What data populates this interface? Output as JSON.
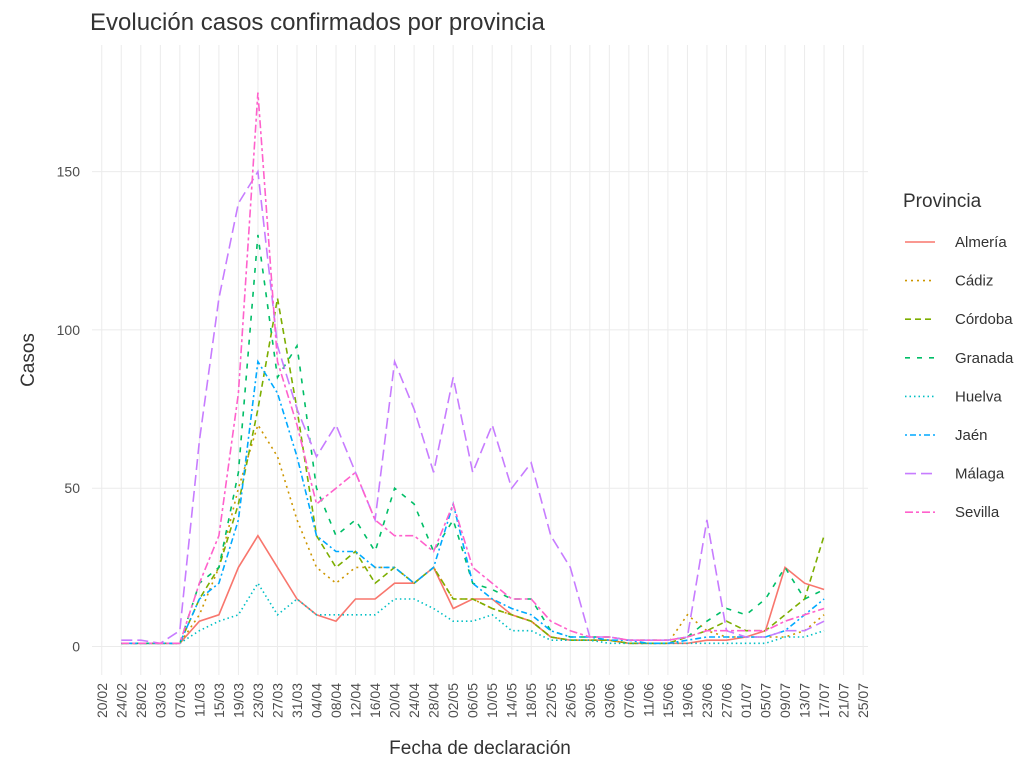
{
  "chart_data": {
    "type": "line",
    "title": "Evolución casos confirmados por provincia",
    "x_label": "Fecha de declaración",
    "y_label": "Casos",
    "legend_title": "Provincia",
    "x": [
      "24/02",
      "28/02",
      "03/03",
      "07/03",
      "11/03",
      "15/03",
      "19/03",
      "23/03",
      "27/03",
      "31/03",
      "04/04",
      "08/04",
      "12/04",
      "16/04",
      "20/04",
      "24/04",
      "28/04",
      "02/05",
      "06/05",
      "10/05",
      "14/05",
      "18/05",
      "22/05",
      "26/05",
      "30/05",
      "03/06",
      "07/06",
      "11/06",
      "15/06",
      "19/06",
      "23/06",
      "27/06",
      "01/07",
      "05/07",
      "09/07",
      "13/07",
      "17/07"
    ],
    "xlim": [
      "18/02",
      "26/07"
    ],
    "xticks": [
      "20/02",
      "24/02",
      "28/02",
      "03/03",
      "07/03",
      "11/03",
      "15/03",
      "19/03",
      "23/03",
      "27/03",
      "31/03",
      "04/04",
      "08/04",
      "12/04",
      "16/04",
      "20/04",
      "24/04",
      "28/04",
      "02/05",
      "06/05",
      "10/05",
      "14/05",
      "18/05",
      "22/05",
      "26/05",
      "30/05",
      "03/06",
      "07/06",
      "11/06",
      "15/06",
      "19/06",
      "23/06",
      "27/06",
      "01/07",
      "05/07",
      "09/07",
      "13/07",
      "17/07",
      "21/07",
      "25/07"
    ],
    "ylim": [
      -9,
      190
    ],
    "yticks": [
      0,
      50,
      100,
      150
    ],
    "grid": true,
    "series": [
      {
        "name": "Almería",
        "color": "#F8766D",
        "dash": "solid",
        "values": [
          1,
          1,
          1,
          1,
          8,
          10,
          25,
          35,
          25,
          15,
          10,
          8,
          15,
          15,
          20,
          20,
          25,
          12,
          15,
          15,
          10,
          8,
          3,
          2,
          2,
          2,
          1,
          1,
          1,
          1,
          2,
          2,
          3,
          5,
          25,
          20,
          18
        ]
      },
      {
        "name": "Cádiz",
        "color": "#CD9600",
        "dash": "dotted",
        "values": [
          1,
          1,
          1,
          1,
          10,
          25,
          50,
          70,
          60,
          40,
          25,
          20,
          25,
          25,
          25,
          20,
          25,
          15,
          15,
          12,
          10,
          8,
          3,
          2,
          2,
          2,
          1,
          1,
          1,
          10,
          5,
          3,
          3,
          3,
          3,
          5,
          10
        ]
      },
      {
        "name": "Córdoba",
        "color": "#7CAE00",
        "dash": "dashed",
        "values": [
          1,
          1,
          1,
          1,
          15,
          25,
          45,
          75,
          110,
          75,
          35,
          25,
          30,
          20,
          25,
          20,
          25,
          15,
          15,
          12,
          10,
          8,
          3,
          2,
          2,
          2,
          1,
          1,
          1,
          3,
          5,
          8,
          5,
          5,
          10,
          15,
          35
        ]
      },
      {
        "name": "Granada",
        "color": "#00BE67",
        "dash": "dashed-wide",
        "values": [
          1,
          1,
          1,
          1,
          20,
          25,
          55,
          130,
          85,
          95,
          50,
          35,
          40,
          30,
          50,
          45,
          30,
          40,
          20,
          18,
          15,
          15,
          5,
          3,
          3,
          3,
          2,
          2,
          2,
          3,
          8,
          12,
          10,
          15,
          25,
          15,
          18
        ]
      },
      {
        "name": "Huelva",
        "color": "#00BFC4",
        "dash": "dotted-fine",
        "values": [
          1,
          1,
          1,
          1,
          5,
          8,
          10,
          20,
          10,
          15,
          10,
          10,
          10,
          10,
          15,
          15,
          12,
          8,
          8,
          10,
          5,
          5,
          2,
          2,
          2,
          1,
          1,
          1,
          1,
          1,
          1,
          1,
          1,
          1,
          3,
          3,
          5
        ]
      },
      {
        "name": "Jaén",
        "color": "#00A9FF",
        "dash": "dotdash",
        "values": [
          1,
          1,
          1,
          1,
          15,
          20,
          40,
          90,
          80,
          60,
          35,
          30,
          30,
          25,
          25,
          20,
          25,
          45,
          20,
          15,
          12,
          10,
          5,
          3,
          3,
          2,
          2,
          1,
          1,
          2,
          3,
          3,
          3,
          3,
          5,
          10,
          15
        ]
      },
      {
        "name": "Málaga",
        "color": "#C77CFF",
        "dash": "longdash",
        "values": [
          2,
          2,
          1,
          5,
          65,
          110,
          140,
          150,
          95,
          75,
          60,
          70,
          55,
          40,
          90,
          75,
          55,
          85,
          55,
          70,
          50,
          58,
          35,
          25,
          3,
          3,
          2,
          2,
          2,
          3,
          40,
          5,
          3,
          3,
          5,
          5,
          8
        ]
      },
      {
        "name": "Sevilla",
        "color": "#FF61CC",
        "dash": "twodash",
        "values": [
          1,
          1,
          1,
          1,
          20,
          35,
          80,
          175,
          90,
          70,
          45,
          50,
          55,
          40,
          35,
          35,
          30,
          45,
          25,
          20,
          15,
          15,
          8,
          5,
          3,
          3,
          2,
          2,
          2,
          3,
          5,
          5,
          5,
          5,
          8,
          10,
          12
        ]
      }
    ]
  }
}
